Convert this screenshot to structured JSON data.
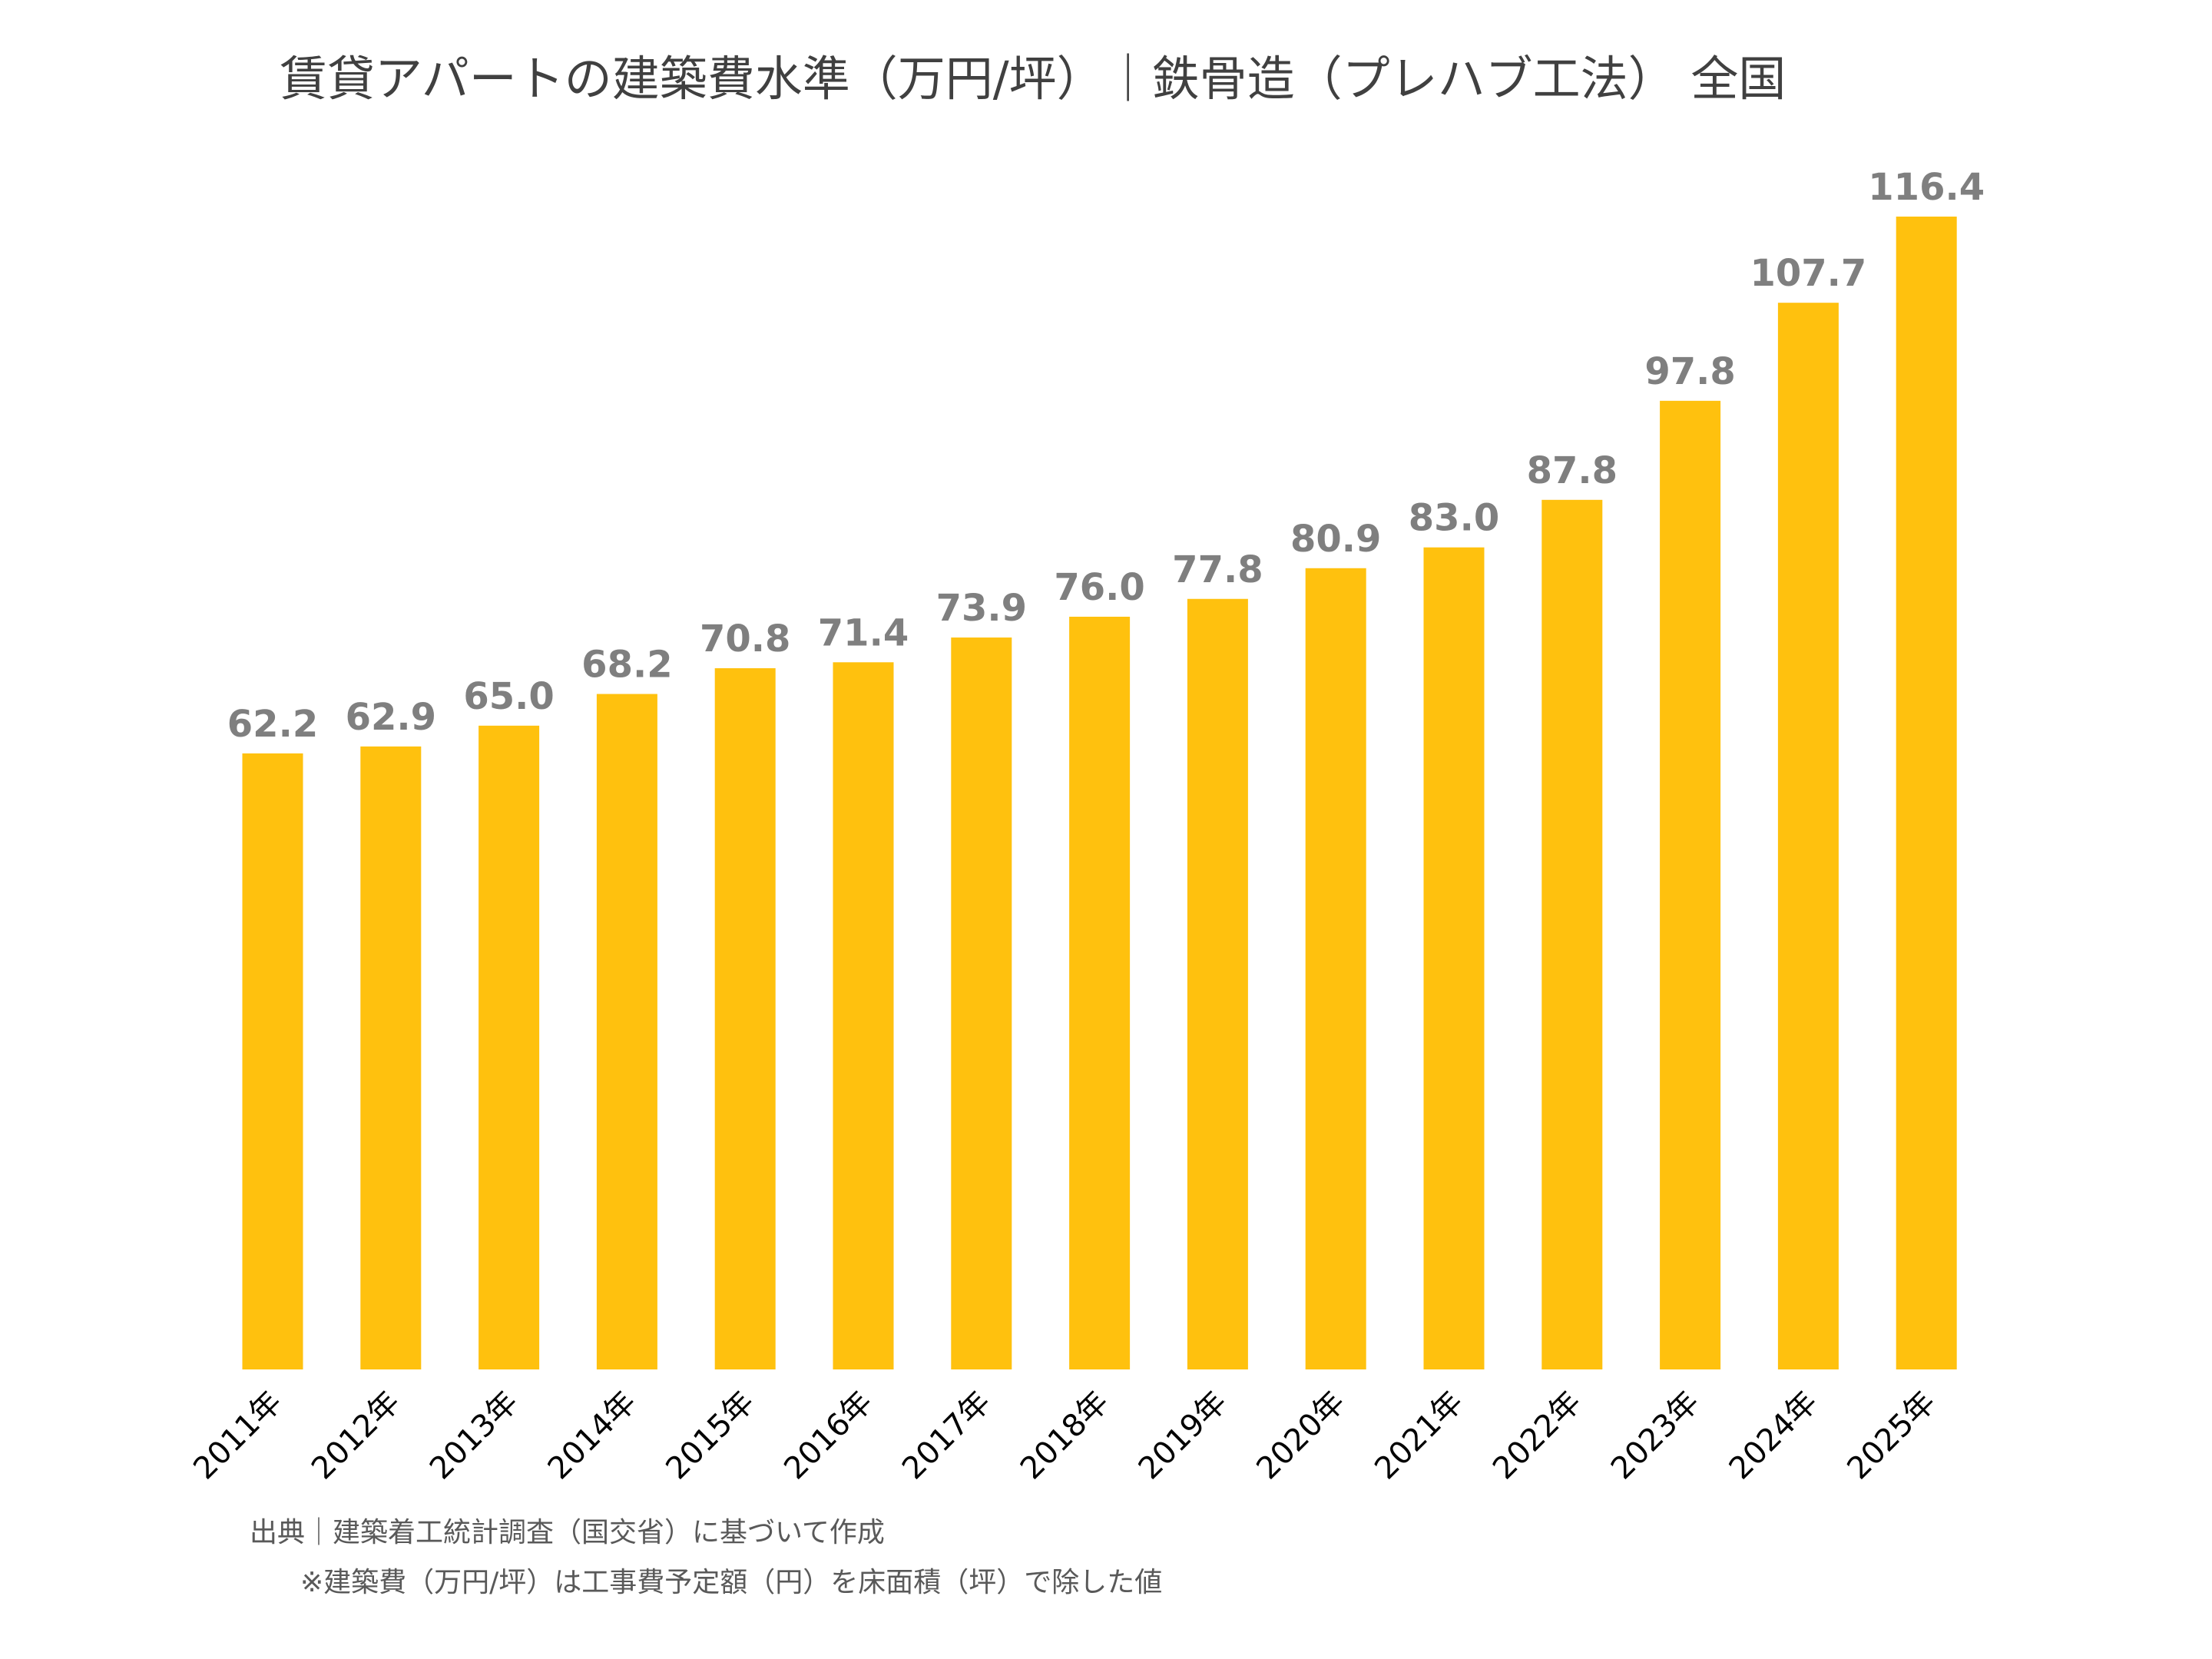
{
  "chart_data": {
    "type": "bar",
    "title": "賃貸アパートの建築費水準（万円/坪）｜鉄骨造（プレハブ工法） 全国",
    "categories": [
      "2011年",
      "2012年",
      "2013年",
      "2014年",
      "2015年",
      "2016年",
      "2017年",
      "2018年",
      "2019年",
      "2020年",
      "2021年",
      "2022年",
      "2023年",
      "2024年",
      "2025年"
    ],
    "values": [
      62.2,
      62.9,
      65.0,
      68.2,
      70.8,
      71.4,
      73.9,
      76.0,
      77.8,
      80.9,
      83.0,
      87.8,
      97.8,
      107.7,
      116.4
    ],
    "data_labels": [
      "62.2",
      "62.9",
      "65.0",
      "68.2",
      "70.8",
      "71.4",
      "73.9",
      "76.0",
      "77.8",
      "80.9",
      "83.0",
      "87.8",
      "97.8",
      "107.7",
      "116.4"
    ],
    "xlabel": "",
    "ylabel": "",
    "ylim": [
      0,
      116.4
    ],
    "grid": false,
    "legend": "none",
    "bar_color": "#FFC10E",
    "label_color": "#7F7F7F"
  },
  "notes": {
    "source": "出典｜建築着工統計調査（国交省）に基づいて作成",
    "definition": "※建築費（万円/坪）は工事費予定額（円）を床面積（坪）で除した値"
  }
}
